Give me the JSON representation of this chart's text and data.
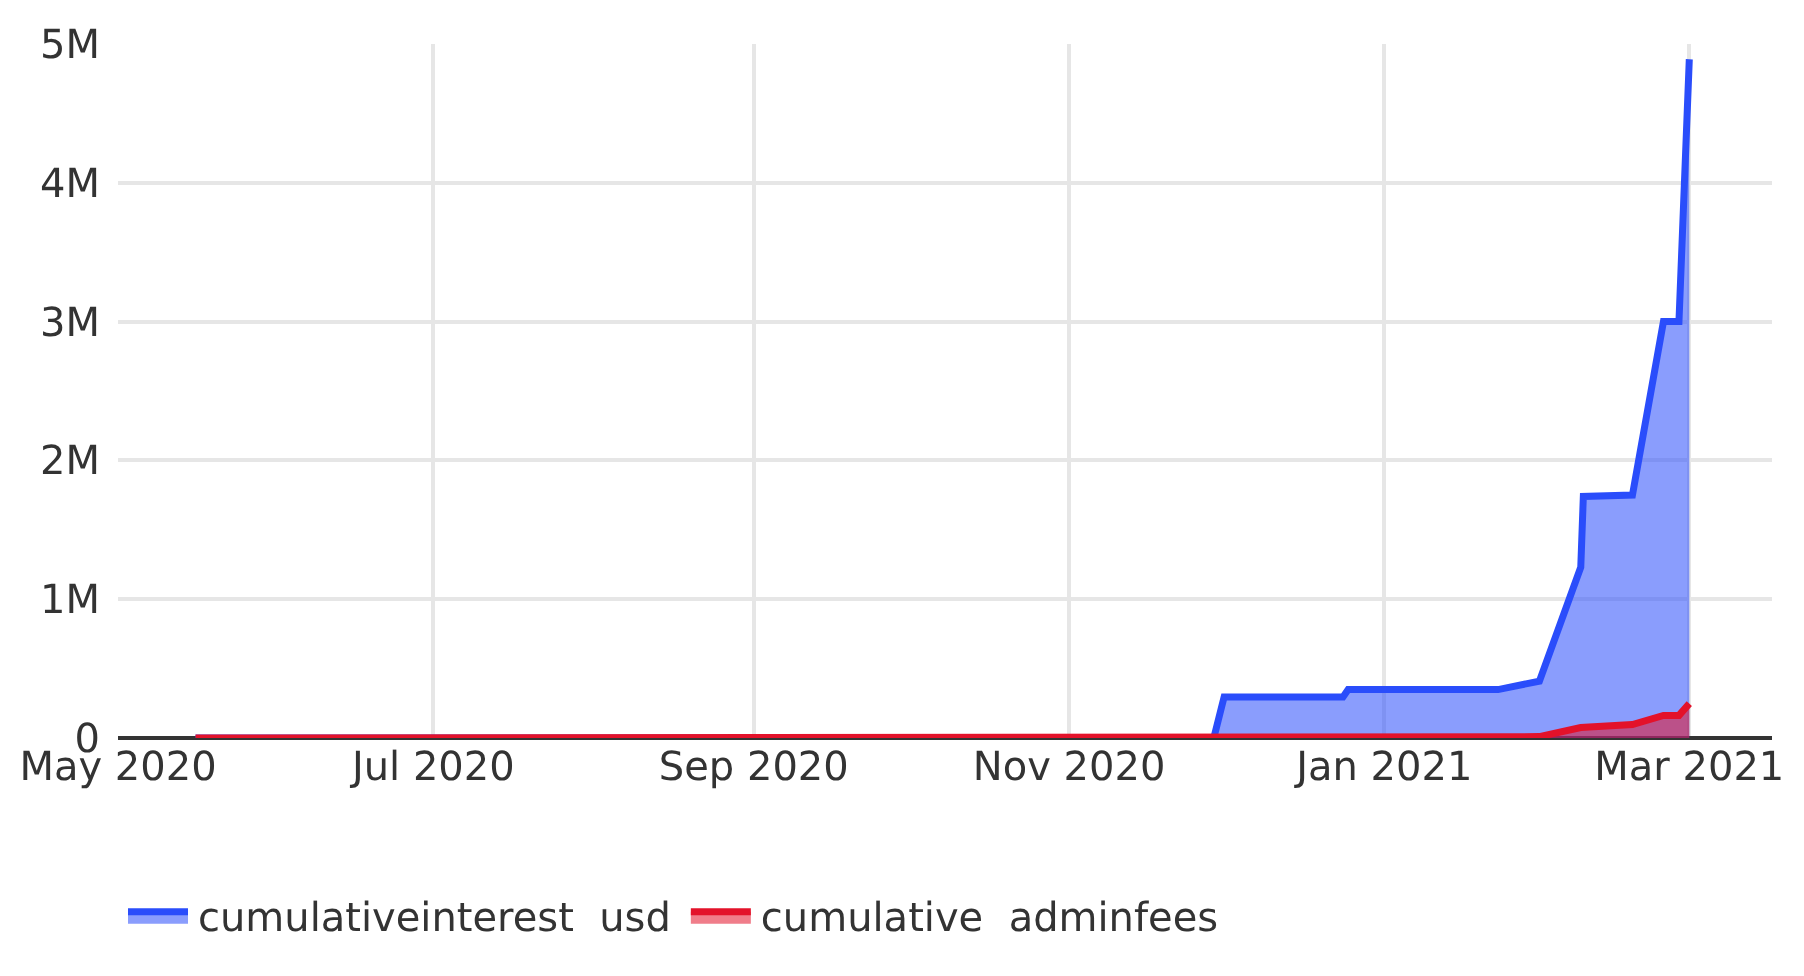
{
  "chart_data": {
    "type": "area",
    "xlim": [
      "2020-05-01",
      "2021-03-17"
    ],
    "xticks": [
      {
        "value": "2020-05-01",
        "label": "May 2020"
      },
      {
        "value": "2020-07-01",
        "label": "Jul 2020"
      },
      {
        "value": "2020-09-01",
        "label": "Sep 2020"
      },
      {
        "value": "2020-11-01",
        "label": "Nov 2020"
      },
      {
        "value": "2021-01-01",
        "label": "Jan 2021"
      },
      {
        "value": "2021-03-01",
        "label": "Mar 2021"
      }
    ],
    "ylim": [
      0,
      5000000
    ],
    "yticks": [
      0,
      {
        "value": 1000000,
        "label": "1M"
      },
      {
        "value": 2000000,
        "label": "2M"
      },
      {
        "value": 3000000,
        "label": "3M"
      },
      {
        "value": 4000000,
        "label": "4M"
      },
      {
        "value": 5000000,
        "label": "5M"
      }
    ],
    "grid": true,
    "legend": "bottom",
    "series": [
      {
        "name": "cumulativeinterest  usd",
        "color": "#2a4dfb",
        "x": [
          "2020-05-16",
          "2020-11-29",
          "2020-12-01",
          "2020-12-24",
          "2020-12-25",
          "2021-01-23",
          "2021-01-31",
          "2021-02-08",
          "2021-02-08T12:00",
          "2021-02-18",
          "2021-02-24",
          "2021-02-27",
          "2021-03-01"
        ],
        "values": [
          0,
          0,
          296000,
          296000,
          349000,
          349000,
          410000,
          1230000,
          1740000,
          1750000,
          3000000,
          3000000,
          4890000
        ]
      },
      {
        "name": "cumulative  adminfees",
        "color": "#e3122a",
        "x": [
          "2020-05-16",
          "2021-01-31",
          "2021-02-08",
          "2021-02-18",
          "2021-02-24",
          "2021-02-27",
          "2021-03-01"
        ],
        "values": [
          0,
          10000,
          76000,
          97000,
          163000,
          163000,
          248000
        ]
      }
    ]
  }
}
